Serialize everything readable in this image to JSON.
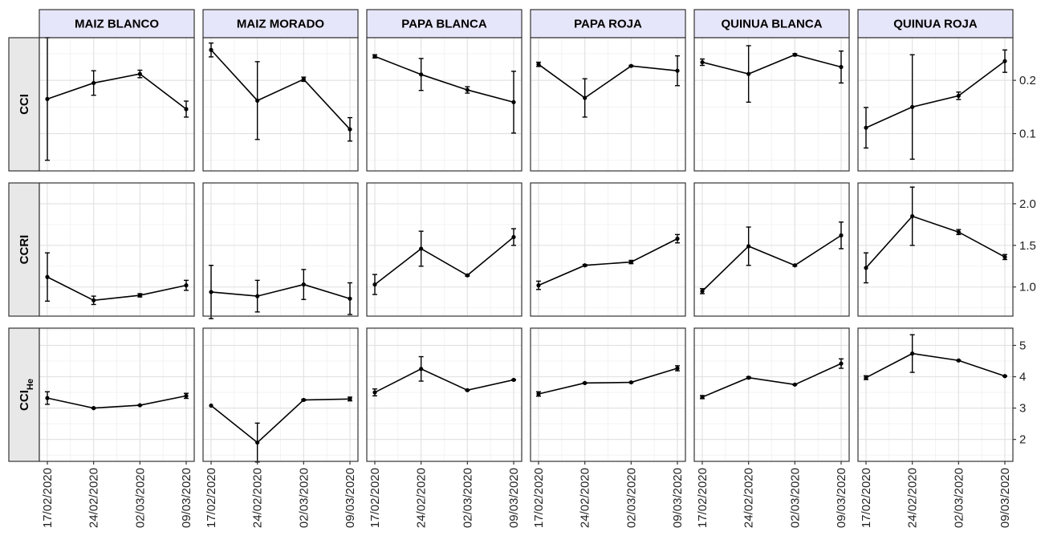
{
  "chart_data": {
    "type": "line",
    "error_bars": true,
    "grid": true,
    "columns": [
      "MAIZ BLANCO",
      "MAIZ MORADO",
      "PAPA BLANCA",
      "PAPA ROJA",
      "QUINUA BLANCA",
      "QUINUA ROJA"
    ],
    "x": [
      "17/02/2020",
      "24/02/2020",
      "02/03/2020",
      "09/03/2020"
    ],
    "rows": [
      {
        "label": "CCI",
        "label_sub": "",
        "ylim": [
          0.03,
          0.28
        ],
        "yticks": [
          0.1,
          0.2
        ],
        "ytick_labels": [
          "0.1",
          "0.2"
        ],
        "panels": [
          {
            "values": [
              0.165,
              0.195,
              0.212,
              0.146
            ],
            "errors": [
              0.115,
              0.023,
              0.007,
              0.015
            ]
          },
          {
            "values": [
              0.257,
              0.162,
              0.202,
              0.108
            ],
            "errors": [
              0.013,
              0.073,
              0.004,
              0.022
            ]
          },
          {
            "values": [
              0.245,
              0.211,
              0.182,
              0.159
            ],
            "errors": [
              0.003,
              0.03,
              0.006,
              0.058
            ]
          },
          {
            "values": [
              0.23,
              0.167,
              0.227,
              0.218
            ],
            "errors": [
              0.004,
              0.036,
              0.001,
              0.028
            ]
          },
          {
            "values": [
              0.234,
              0.212,
              0.248,
              0.225
            ],
            "errors": [
              0.006,
              0.053,
              0.002,
              0.03
            ]
          },
          {
            "values": [
              0.111,
              0.15,
              0.171,
              0.236
            ],
            "errors": [
              0.038,
              0.098,
              0.007,
              0.021
            ]
          }
        ]
      },
      {
        "label": "CCRI",
        "label_sub": "",
        "ylim": [
          0.65,
          2.25
        ],
        "yticks": [
          1.0,
          1.5,
          2.0
        ],
        "ytick_labels": [
          "1.0",
          "1.5",
          "2.0"
        ],
        "panels": [
          {
            "values": [
              1.12,
              0.84,
              0.9,
              1.02
            ],
            "errors": [
              0.29,
              0.05,
              0.02,
              0.06
            ]
          },
          {
            "values": [
              0.94,
              0.89,
              1.03,
              0.86
            ],
            "errors": [
              0.32,
              0.19,
              0.18,
              0.19
            ]
          },
          {
            "values": [
              1.03,
              1.46,
              1.14,
              1.6
            ],
            "errors": [
              0.12,
              0.21,
              0.01,
              0.1
            ]
          },
          {
            "values": [
              1.02,
              1.26,
              1.3,
              1.58
            ],
            "errors": [
              0.05,
              0.01,
              0.02,
              0.05
            ]
          },
          {
            "values": [
              0.95,
              1.49,
              1.26,
              1.62
            ],
            "errors": [
              0.03,
              0.23,
              0.01,
              0.16
            ]
          },
          {
            "values": [
              1.23,
              1.85,
              1.66,
              1.36
            ],
            "errors": [
              0.18,
              0.35,
              0.03,
              0.03
            ]
          }
        ]
      },
      {
        "label": "CCI",
        "label_sub": "He",
        "ylim": [
          1.3,
          5.55
        ],
        "yticks": [
          2,
          3,
          4,
          5
        ],
        "ytick_labels": [
          "2",
          "3",
          "4",
          "5"
        ],
        "panels": [
          {
            "values": [
              3.32,
              3.0,
              3.09,
              3.39
            ],
            "errors": [
              0.2,
              0.01,
              0.01,
              0.08
            ]
          },
          {
            "values": [
              3.08,
              1.9,
              3.26,
              3.29
            ],
            "errors": [
              0.0,
              0.62,
              0.02,
              0.06
            ]
          },
          {
            "values": [
              3.5,
              4.25,
              3.57,
              3.9
            ],
            "errors": [
              0.11,
              0.39,
              0.01,
              0.01
            ]
          },
          {
            "values": [
              3.45,
              3.8,
              3.82,
              4.27
            ],
            "errors": [
              0.07,
              0.01,
              0.01,
              0.08
            ]
          },
          {
            "values": [
              3.35,
              3.97,
              3.75,
              4.42
            ],
            "errors": [
              0.05,
              0.03,
              0.01,
              0.15
            ]
          },
          {
            "values": [
              3.97,
              4.74,
              4.52,
              4.02
            ],
            "errors": [
              0.06,
              0.6,
              0.01,
              0.01
            ]
          }
        ]
      }
    ]
  }
}
